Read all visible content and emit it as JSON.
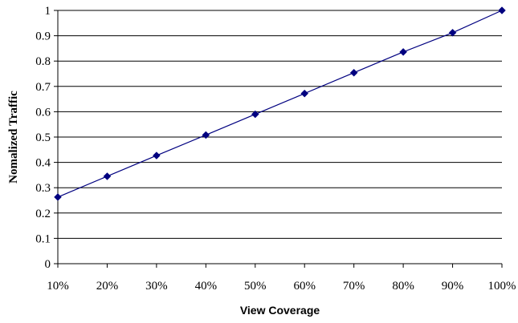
{
  "chart_data": {
    "type": "line",
    "title": "",
    "xlabel": "View Coverage",
    "ylabel": "Nomalized Traffic",
    "x": [
      "10%",
      "20%",
      "30%",
      "40%",
      "50%",
      "60%",
      "70%",
      "80%",
      "90%",
      "100%"
    ],
    "y_ticks": [
      "0",
      "0.1",
      "0.2",
      "0.3",
      "0.4",
      "0.5",
      "0.6",
      "0.7",
      "0.8",
      "0.9",
      "1"
    ],
    "ylim": [
      0,
      1
    ],
    "grid": true,
    "legend": "none",
    "series": [
      {
        "values": [
          0.263,
          0.345,
          0.427,
          0.508,
          0.59,
          0.672,
          0.754,
          0.836,
          0.912,
          1.0
        ],
        "color": "#000080",
        "marker": "diamond"
      }
    ]
  }
}
